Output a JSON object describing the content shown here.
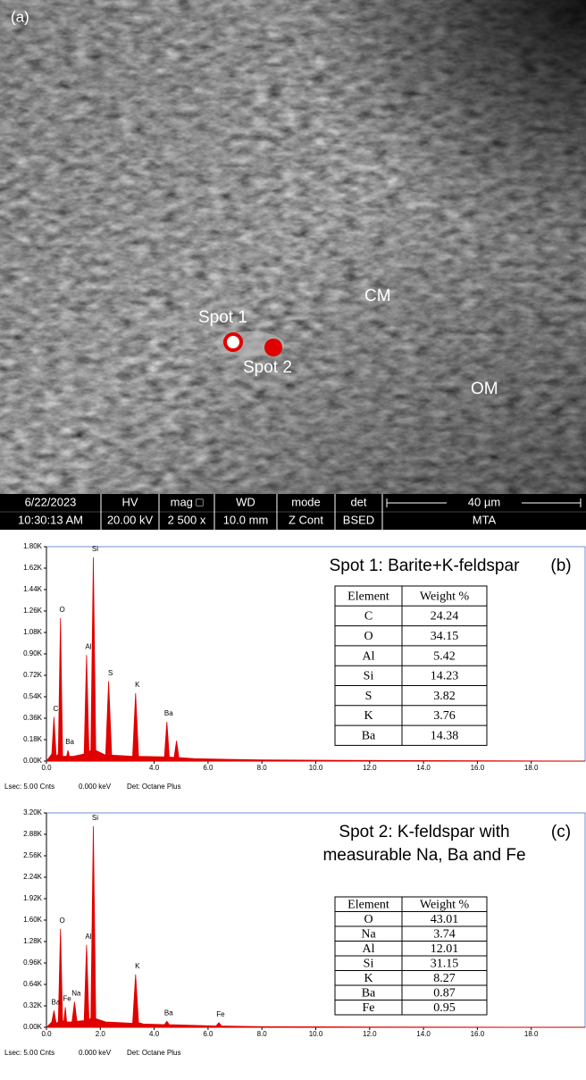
{
  "panel_a": {
    "label": "(a)",
    "annotations": [
      "Spot 1",
      "Spot 2",
      "CM",
      "OM"
    ],
    "info_bar": [
      [
        "6/22/2023",
        "10:30:13 AM"
      ],
      [
        "HV",
        "20.00 kV"
      ],
      [
        "mag □",
        "2 500 x"
      ],
      [
        "WD",
        "10.0 mm"
      ],
      [
        "mode",
        "Z Cont"
      ],
      [
        "det",
        "BSED"
      ],
      [
        "40 µm",
        "MTA"
      ]
    ]
  },
  "chart_data": [
    {
      "type": "area",
      "panel_label": "(b)",
      "title": [
        "Spot 1: Barite+K-feldspar"
      ],
      "color": "#e00000",
      "x": [
        0,
        0.2,
        0.28,
        0.36,
        0.44,
        0.52,
        0.6,
        0.75,
        0.8,
        0.85,
        1.0,
        1.4,
        1.49,
        1.58,
        1.65,
        1.74,
        1.83,
        2.2,
        2.31,
        2.42,
        3.2,
        3.31,
        3.42,
        4.38,
        4.47,
        4.56,
        4.74,
        4.83,
        4.92,
        5.5,
        8,
        12,
        20
      ],
      "values": [
        0,
        60,
        370,
        40,
        60,
        1200,
        40,
        40,
        90,
        40,
        40,
        60,
        890,
        80,
        90,
        1710,
        90,
        50,
        670,
        50,
        40,
        570,
        40,
        35,
        330,
        35,
        30,
        170,
        30,
        20,
        10,
        5,
        0
      ],
      "xlim": [
        0,
        20
      ],
      "ylim": [
        0,
        1800
      ],
      "xticks": [
        {
          "value": 0,
          "label": "0.0"
        },
        {
          "value": 4,
          "label": "4.0"
        },
        {
          "value": 6,
          "label": "6.0"
        },
        {
          "value": 8,
          "label": "8.0"
        },
        {
          "value": 10,
          "label": "10.0"
        },
        {
          "value": 12,
          "label": "12.0"
        },
        {
          "value": 14,
          "label": "14.0"
        },
        {
          "value": 16,
          "label": "16.0"
        },
        {
          "value": 18,
          "label": "18.0"
        }
      ],
      "yticks": [
        {
          "value": 0,
          "label": "0.00K"
        },
        {
          "value": 180,
          "label": "0.18K"
        },
        {
          "value": 360,
          "label": "0.36K"
        },
        {
          "value": 540,
          "label": "0.54K"
        },
        {
          "value": 720,
          "label": "0.72K"
        },
        {
          "value": 900,
          "label": "0.90K"
        },
        {
          "value": 1080,
          "label": "1.08K"
        },
        {
          "value": 1260,
          "label": "1.26K"
        },
        {
          "value": 1440,
          "label": "1.44K"
        },
        {
          "value": 1620,
          "label": "1.62K"
        },
        {
          "value": 1800,
          "label": "1.80K"
        }
      ],
      "peak_labels": [
        {
          "text": "C",
          "x": 0.28
        },
        {
          "text": "O",
          "x": 0.52
        },
        {
          "text": "Ba",
          "x": 0.8
        },
        {
          "text": "Al",
          "x": 1.49
        },
        {
          "text": "Si",
          "x": 1.74
        },
        {
          "text": "S",
          "x": 2.31
        },
        {
          "text": "K",
          "x": 3.31
        },
        {
          "text": "Ba",
          "x": 4.47
        }
      ],
      "table": {
        "header": [
          "Element",
          "Weight %"
        ],
        "rows": [
          [
            "C",
            "24.24"
          ],
          [
            "O",
            "34.15"
          ],
          [
            "Al",
            "5.42"
          ],
          [
            "Si",
            "14.23"
          ],
          [
            "S",
            "3.82"
          ],
          [
            "K",
            "3.76"
          ],
          [
            "Ba",
            "14.38"
          ]
        ]
      },
      "footer": [
        "Lsec: 5.0",
        "0 Cnts",
        "0.000 keV",
        "Det: Octane Plus"
      ]
    },
    {
      "type": "area",
      "panel_label": "(c)",
      "title": [
        "Spot 2: K-feldspar with",
        "measurable Na, Ba and Fe"
      ],
      "color": "#e00000",
      "x": [
        0,
        0.2,
        0.28,
        0.36,
        0.44,
        0.52,
        0.6,
        0.65,
        0.7,
        0.75,
        0.95,
        1.04,
        1.13,
        1.4,
        1.49,
        1.58,
        1.65,
        1.74,
        1.83,
        2.2,
        3.2,
        3.31,
        3.42,
        3.6,
        4.38,
        4.47,
        4.56,
        6.3,
        6.4,
        6.5,
        8,
        12,
        20
      ],
      "values": [
        0,
        80,
        250,
        60,
        80,
        1470,
        90,
        100,
        300,
        80,
        80,
        380,
        90,
        100,
        1230,
        120,
        130,
        3000,
        130,
        80,
        60,
        790,
        70,
        50,
        40,
        90,
        40,
        20,
        70,
        20,
        10,
        5,
        0
      ],
      "xlim": [
        0,
        20
      ],
      "ylim": [
        0,
        3200
      ],
      "xticks": [
        {
          "value": 0,
          "label": "0.0"
        },
        {
          "value": 2,
          "label": "2.0"
        },
        {
          "value": 4,
          "label": "4.0"
        },
        {
          "value": 6,
          "label": "6.0"
        },
        {
          "value": 8,
          "label": "8.0"
        },
        {
          "value": 10,
          "label": "10.0"
        },
        {
          "value": 12,
          "label": "12.0"
        },
        {
          "value": 14,
          "label": "14.0"
        },
        {
          "value": 16,
          "label": "16.0"
        },
        {
          "value": 18,
          "label": "18.0"
        }
      ],
      "yticks": [
        {
          "value": 0,
          "label": "0.00K"
        },
        {
          "value": 320,
          "label": "0.32K"
        },
        {
          "value": 640,
          "label": "0.64K"
        },
        {
          "value": 960,
          "label": "0.96K"
        },
        {
          "value": 1280,
          "label": "1.28K"
        },
        {
          "value": 1600,
          "label": "1.60K"
        },
        {
          "value": 1920,
          "label": "1.92K"
        },
        {
          "value": 2240,
          "label": "2.24K"
        },
        {
          "value": 2560,
          "label": "2.56K"
        },
        {
          "value": 2880,
          "label": "2.88K"
        },
        {
          "value": 3200,
          "label": "3.20K"
        }
      ],
      "peak_labels": [
        {
          "text": "Ba",
          "x": 0.28
        },
        {
          "text": "O",
          "x": 0.52
        },
        {
          "text": "Fe",
          "x": 0.7
        },
        {
          "text": "Na",
          "x": 1.04
        },
        {
          "text": "Al",
          "x": 1.49
        },
        {
          "text": "Si",
          "x": 1.74
        },
        {
          "text": "K",
          "x": 3.31
        },
        {
          "text": "Ba",
          "x": 4.47
        },
        {
          "text": "Fe",
          "x": 6.4
        }
      ],
      "table": {
        "header": [
          "Element",
          "Weight %"
        ],
        "rows": [
          [
            "O",
            "43.01"
          ],
          [
            "Na",
            "3.74"
          ],
          [
            "Al",
            "12.01"
          ],
          [
            "Si",
            "31.15"
          ],
          [
            "K",
            "8.27"
          ],
          [
            "Ba",
            "0.87"
          ],
          [
            "Fe",
            "0.95"
          ]
        ]
      },
      "footer": [
        "Lsec: 5.0",
        "0 Cnts",
        "0.000 keV",
        "Det: Octane Plus"
      ]
    }
  ]
}
